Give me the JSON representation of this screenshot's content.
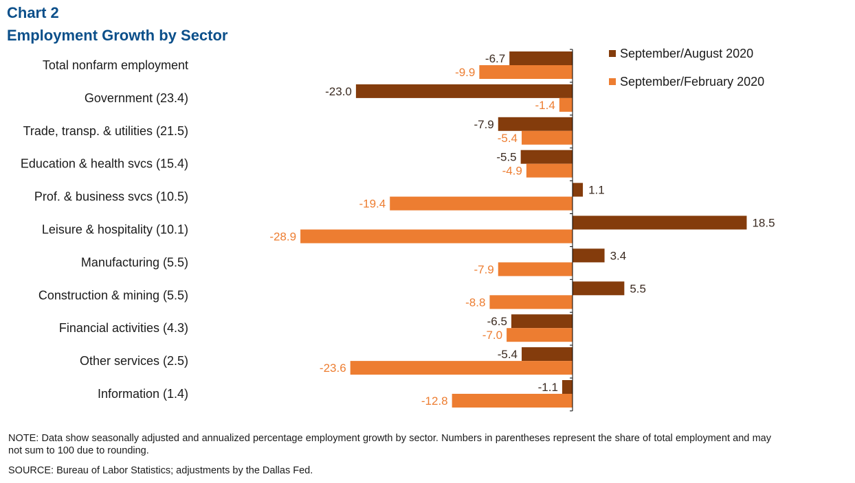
{
  "header": {
    "kicker": "Chart 2",
    "title": "Employment  Growth by Sector"
  },
  "chart_data": {
    "type": "bar",
    "orientation": "horizontal",
    "categories": [
      "Total nonfarm employment",
      "Government (23.4)",
      "Trade, transp. & utilities (21.5)",
      "Education & health svcs (15.4)",
      "Prof. & business svcs (10.5)",
      "Leisure & hospitality (10.1)",
      "Manufacturing (5.5)",
      "Construction & mining (5.5)",
      "Financial activities (4.3)",
      "Other services (2.5)",
      "Information (1.4)"
    ],
    "series": [
      {
        "name": "September/August 2020",
        "color": "#843C0C",
        "label_color": "#3a2a20",
        "values": [
          -6.7,
          -23.0,
          -7.9,
          -5.5,
          1.1,
          18.5,
          3.4,
          5.5,
          -6.5,
          -5.4,
          -1.1
        ],
        "labels": [
          "-6.7",
          "-23.0",
          "-7.9",
          "-5.5",
          "1.1",
          "18.5",
          "3.4",
          "5.5",
          "-6.5",
          "-5.4",
          "-1.1"
        ]
      },
      {
        "name": "September/February 2020",
        "color": "#ED7D31",
        "label_color": "#ED7D31",
        "values": [
          -9.9,
          -1.4,
          -5.4,
          -4.9,
          -19.4,
          -28.9,
          -7.9,
          -8.8,
          -7.0,
          -23.6,
          -12.8
        ],
        "labels": [
          "-9.9",
          "-1.4",
          "-5.4",
          "-4.9",
          "-19.4",
          "-28.9",
          "-7.9",
          "-8.8",
          "-7.0",
          "-23.6",
          "-12.8"
        ]
      }
    ],
    "xlim": [
      -29,
      19
    ],
    "legend": "top-right",
    "grid": false
  },
  "footer": {
    "note": "NOTE:  Data show seasonally adjusted and annualized percentage employment growth by sector. Numbers in parentheses  represent the share of total employment and may not sum to 100 due to rounding.",
    "source": "SOURCE:  Bureau of Labor Statistics; adjustments  by the Dallas Fed."
  }
}
